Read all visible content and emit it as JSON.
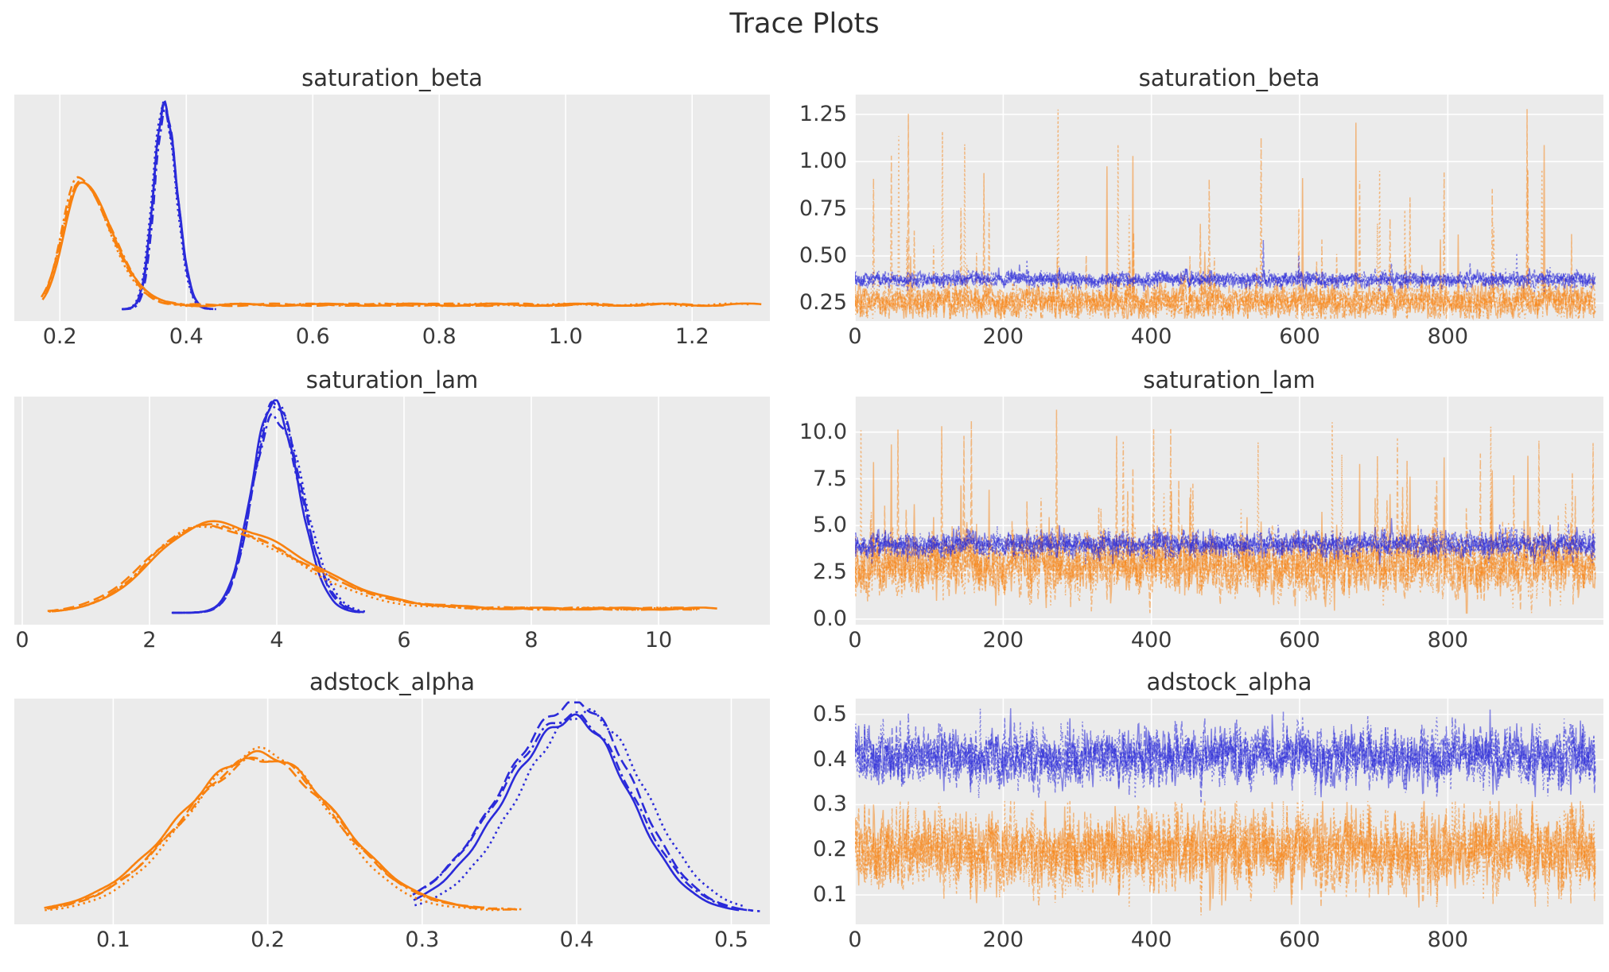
{
  "figure": {
    "title": "Trace Plots",
    "background": "#ffffff",
    "axes_background": "#ebebeb",
    "grid_color": "#ffffff",
    "tick_label_color": "#3a3a3a",
    "title_color": "#2e2e2e",
    "chain_colors": {
      "group_blue": "#2a2ad9",
      "group_orange": "#f8810f"
    },
    "chain_line_styles": [
      "solid",
      "dashed",
      "dashdot",
      "dotted"
    ],
    "layout": "3 rows x 2 cols; left column = KDE density, right column = sampled trace"
  },
  "chart_data": [
    {
      "id": "saturation_beta_kde",
      "type": "kde",
      "title": "saturation_beta",
      "grid": "x",
      "xlim": [
        0.128,
        1.323
      ],
      "xticks": [
        {
          "v": 0.2,
          "label": "0.2"
        },
        {
          "v": 0.4,
          "label": "0.4"
        },
        {
          "v": 0.6,
          "label": "0.6"
        },
        {
          "v": 0.8,
          "label": "0.8"
        },
        {
          "v": 1.0,
          "label": "1.0"
        },
        {
          "v": 1.2,
          "label": "1.2"
        }
      ],
      "series": [
        {
          "name": "posterior-blue-4-chains",
          "color": "#2a2ad9",
          "line_width": 2.6,
          "chains": 4,
          "seed": 11,
          "peak_x": 0.365,
          "peak_density": 1.0,
          "sd_left": 0.0165,
          "sd_right": 0.02,
          "support": [
            0.298,
            0.447
          ],
          "tail_level": 0,
          "tail_start": 0.447
        },
        {
          "name": "posterior-orange-4-chains",
          "color": "#f8810f",
          "line_width": 2.6,
          "chains": 4,
          "seed": 21,
          "peak_x": 0.233,
          "peak_density": 0.62,
          "sd_left": 0.027,
          "sd_right": 0.052,
          "support": [
            0.173,
            1.29
          ],
          "tail_level": 0.022,
          "tail_start": 0.33
        }
      ]
    },
    {
      "id": "saturation_beta_trace",
      "type": "trace",
      "title": "saturation_beta",
      "grid": "xy",
      "xlim": [
        0,
        1010
      ],
      "n_draws": 1000,
      "xticks": [
        {
          "v": 0,
          "label": "0"
        },
        {
          "v": 200,
          "label": "200"
        },
        {
          "v": 400,
          "label": "400"
        },
        {
          "v": 600,
          "label": "600"
        },
        {
          "v": 800,
          "label": "800"
        }
      ],
      "ylim": [
        0.155,
        1.355
      ],
      "yticks": [
        {
          "v": 0.25,
          "label": "0.25"
        },
        {
          "v": 0.5,
          "label": "0.50"
        },
        {
          "v": 0.75,
          "label": "0.75"
        },
        {
          "v": 1.0,
          "label": "1.00"
        },
        {
          "v": 1.25,
          "label": "1.25"
        }
      ],
      "series": [
        {
          "name": "trace-orange-4-chains",
          "color": "#f8810f",
          "opacity": 0.5,
          "line_width": 1.5,
          "chains": 4,
          "seed": 101,
          "mean": 0.26,
          "sd": 0.045,
          "phi": 0.25,
          "clip": [
            0.168,
            1.29
          ],
          "spike_prob": 0.012,
          "spike_pow": 2.2,
          "spike_max": 1.29
        },
        {
          "name": "trace-blue-4-chains",
          "color": "#2a2ad9",
          "opacity": 0.55,
          "line_width": 1.5,
          "chains": 4,
          "seed": 202,
          "mean": 0.375,
          "sd": 0.02,
          "phi": 0.3,
          "clip": [
            0.3,
            0.62
          ],
          "spike_prob": 0.003,
          "spike_pow": 2.0,
          "spike_max": 0.62
        }
      ]
    },
    {
      "id": "saturation_lam_kde",
      "type": "kde",
      "title": "saturation_lam",
      "grid": "x",
      "xlim": [
        -0.125,
        11.75
      ],
      "xticks": [
        {
          "v": 0,
          "label": "0"
        },
        {
          "v": 2,
          "label": "2"
        },
        {
          "v": 4,
          "label": "4"
        },
        {
          "v": 6,
          "label": "6"
        },
        {
          "v": 8,
          "label": "8"
        },
        {
          "v": 10,
          "label": "10"
        }
      ],
      "series": [
        {
          "name": "posterior-blue-4-chains",
          "color": "#2a2ad9",
          "line_width": 2.6,
          "chains": 4,
          "seed": 31,
          "peak_x": 3.93,
          "peak_density": 1.0,
          "sd_left": 0.33,
          "sd_right": 0.42,
          "support": [
            2.35,
            5.45
          ],
          "tail_level": 0,
          "tail_start": 5.45
        },
        {
          "name": "posterior-orange-4-chains",
          "color": "#f8810f",
          "line_width": 2.6,
          "chains": 4,
          "seed": 41,
          "peak_x": 2.85,
          "peak_density": 0.44,
          "sd_left": 0.85,
          "sd_right": 1.45,
          "support": [
            0.42,
            11.45
          ],
          "tail_level": 0.02,
          "tail_start": 6.0
        }
      ]
    },
    {
      "id": "saturation_lam_trace",
      "type": "trace",
      "title": "saturation_lam",
      "grid": "xy",
      "xlim": [
        0,
        1010
      ],
      "n_draws": 1000,
      "xticks": [
        {
          "v": 0,
          "label": "0"
        },
        {
          "v": 200,
          "label": "200"
        },
        {
          "v": 400,
          "label": "400"
        },
        {
          "v": 600,
          "label": "600"
        },
        {
          "v": 800,
          "label": "800"
        }
      ],
      "ylim": [
        -0.3,
        11.9
      ],
      "yticks": [
        {
          "v": 0.0,
          "label": "0.0"
        },
        {
          "v": 2.5,
          "label": "2.5"
        },
        {
          "v": 5.0,
          "label": "5.0"
        },
        {
          "v": 7.5,
          "label": "7.5"
        },
        {
          "v": 10.0,
          "label": "10.0"
        }
      ],
      "series": [
        {
          "name": "trace-orange-4-chains",
          "color": "#f8810f",
          "opacity": 0.5,
          "line_width": 1.5,
          "chains": 4,
          "seed": 303,
          "mean": 2.85,
          "sd": 0.8,
          "phi": 0.3,
          "clip": [
            0.32,
            11.3
          ],
          "spike_prob": 0.018,
          "spike_pow": 2.0,
          "spike_max": 11.3
        },
        {
          "name": "trace-blue-4-chains",
          "color": "#2a2ad9",
          "opacity": 0.55,
          "line_width": 1.5,
          "chains": 4,
          "seed": 404,
          "mean": 4.0,
          "sd": 0.32,
          "phi": 0.3,
          "clip": [
            2.9,
            5.4
          ],
          "spike_prob": 0.002,
          "spike_pow": 2.0,
          "spike_max": 5.4
        }
      ]
    },
    {
      "id": "adstock_alpha_kde",
      "type": "kde",
      "title": "adstock_alpha",
      "grid": "x",
      "xlim": [
        0.036,
        0.525
      ],
      "xticks": [
        {
          "v": 0.1,
          "label": "0.1"
        },
        {
          "v": 0.2,
          "label": "0.2"
        },
        {
          "v": 0.3,
          "label": "0.3"
        },
        {
          "v": 0.4,
          "label": "0.4"
        },
        {
          "v": 0.5,
          "label": "0.5"
        }
      ],
      "series": [
        {
          "name": "posterior-blue-4-chains",
          "color": "#2a2ad9",
          "line_width": 2.6,
          "chains": 4,
          "seed": 51,
          "peak_x": 0.402,
          "peak_density": 1.0,
          "sd_left": 0.045,
          "sd_right": 0.038,
          "support": [
            0.295,
            0.517
          ],
          "tail_level": 0,
          "tail_start": 0.517
        },
        {
          "name": "posterior-orange-4-chains",
          "color": "#f8810f",
          "line_width": 2.6,
          "chains": 4,
          "seed": 61,
          "peak_x": 0.195,
          "peak_density": 0.77,
          "sd_left": 0.05,
          "sd_right": 0.048,
          "support": [
            0.057,
            0.36
          ],
          "tail_level": 0.012,
          "tail_start": 0.305
        }
      ]
    },
    {
      "id": "adstock_alpha_trace",
      "type": "trace",
      "title": "adstock_alpha",
      "grid": "xy",
      "xlim": [
        0,
        1010
      ],
      "n_draws": 1000,
      "xticks": [
        {
          "v": 0,
          "label": "0"
        },
        {
          "v": 200,
          "label": "200"
        },
        {
          "v": 400,
          "label": "400"
        },
        {
          "v": 600,
          "label": "600"
        },
        {
          "v": 800,
          "label": "800"
        }
      ],
      "ylim": [
        0.035,
        0.535
      ],
      "yticks": [
        {
          "v": 0.1,
          "label": "0.1"
        },
        {
          "v": 0.2,
          "label": "0.2"
        },
        {
          "v": 0.3,
          "label": "0.3"
        },
        {
          "v": 0.4,
          "label": "0.4"
        },
        {
          "v": 0.5,
          "label": "0.5"
        }
      ],
      "series": [
        {
          "name": "trace-orange-4-chains",
          "color": "#f8810f",
          "opacity": 0.5,
          "line_width": 1.5,
          "chains": 4,
          "seed": 505,
          "mean": 0.2,
          "sd": 0.042,
          "phi": 0.25,
          "clip": [
            0.055,
            0.308
          ],
          "spike_prob": 0,
          "spike_pow": 2.0,
          "spike_max": 0.308
        },
        {
          "name": "trace-blue-4-chains",
          "color": "#2a2ad9",
          "opacity": 0.55,
          "line_width": 1.5,
          "chains": 4,
          "seed": 606,
          "mean": 0.408,
          "sd": 0.03,
          "phi": 0.3,
          "clip": [
            0.305,
            0.515
          ],
          "spike_prob": 0,
          "spike_pow": 2.0,
          "spike_max": 0.515
        }
      ]
    }
  ]
}
